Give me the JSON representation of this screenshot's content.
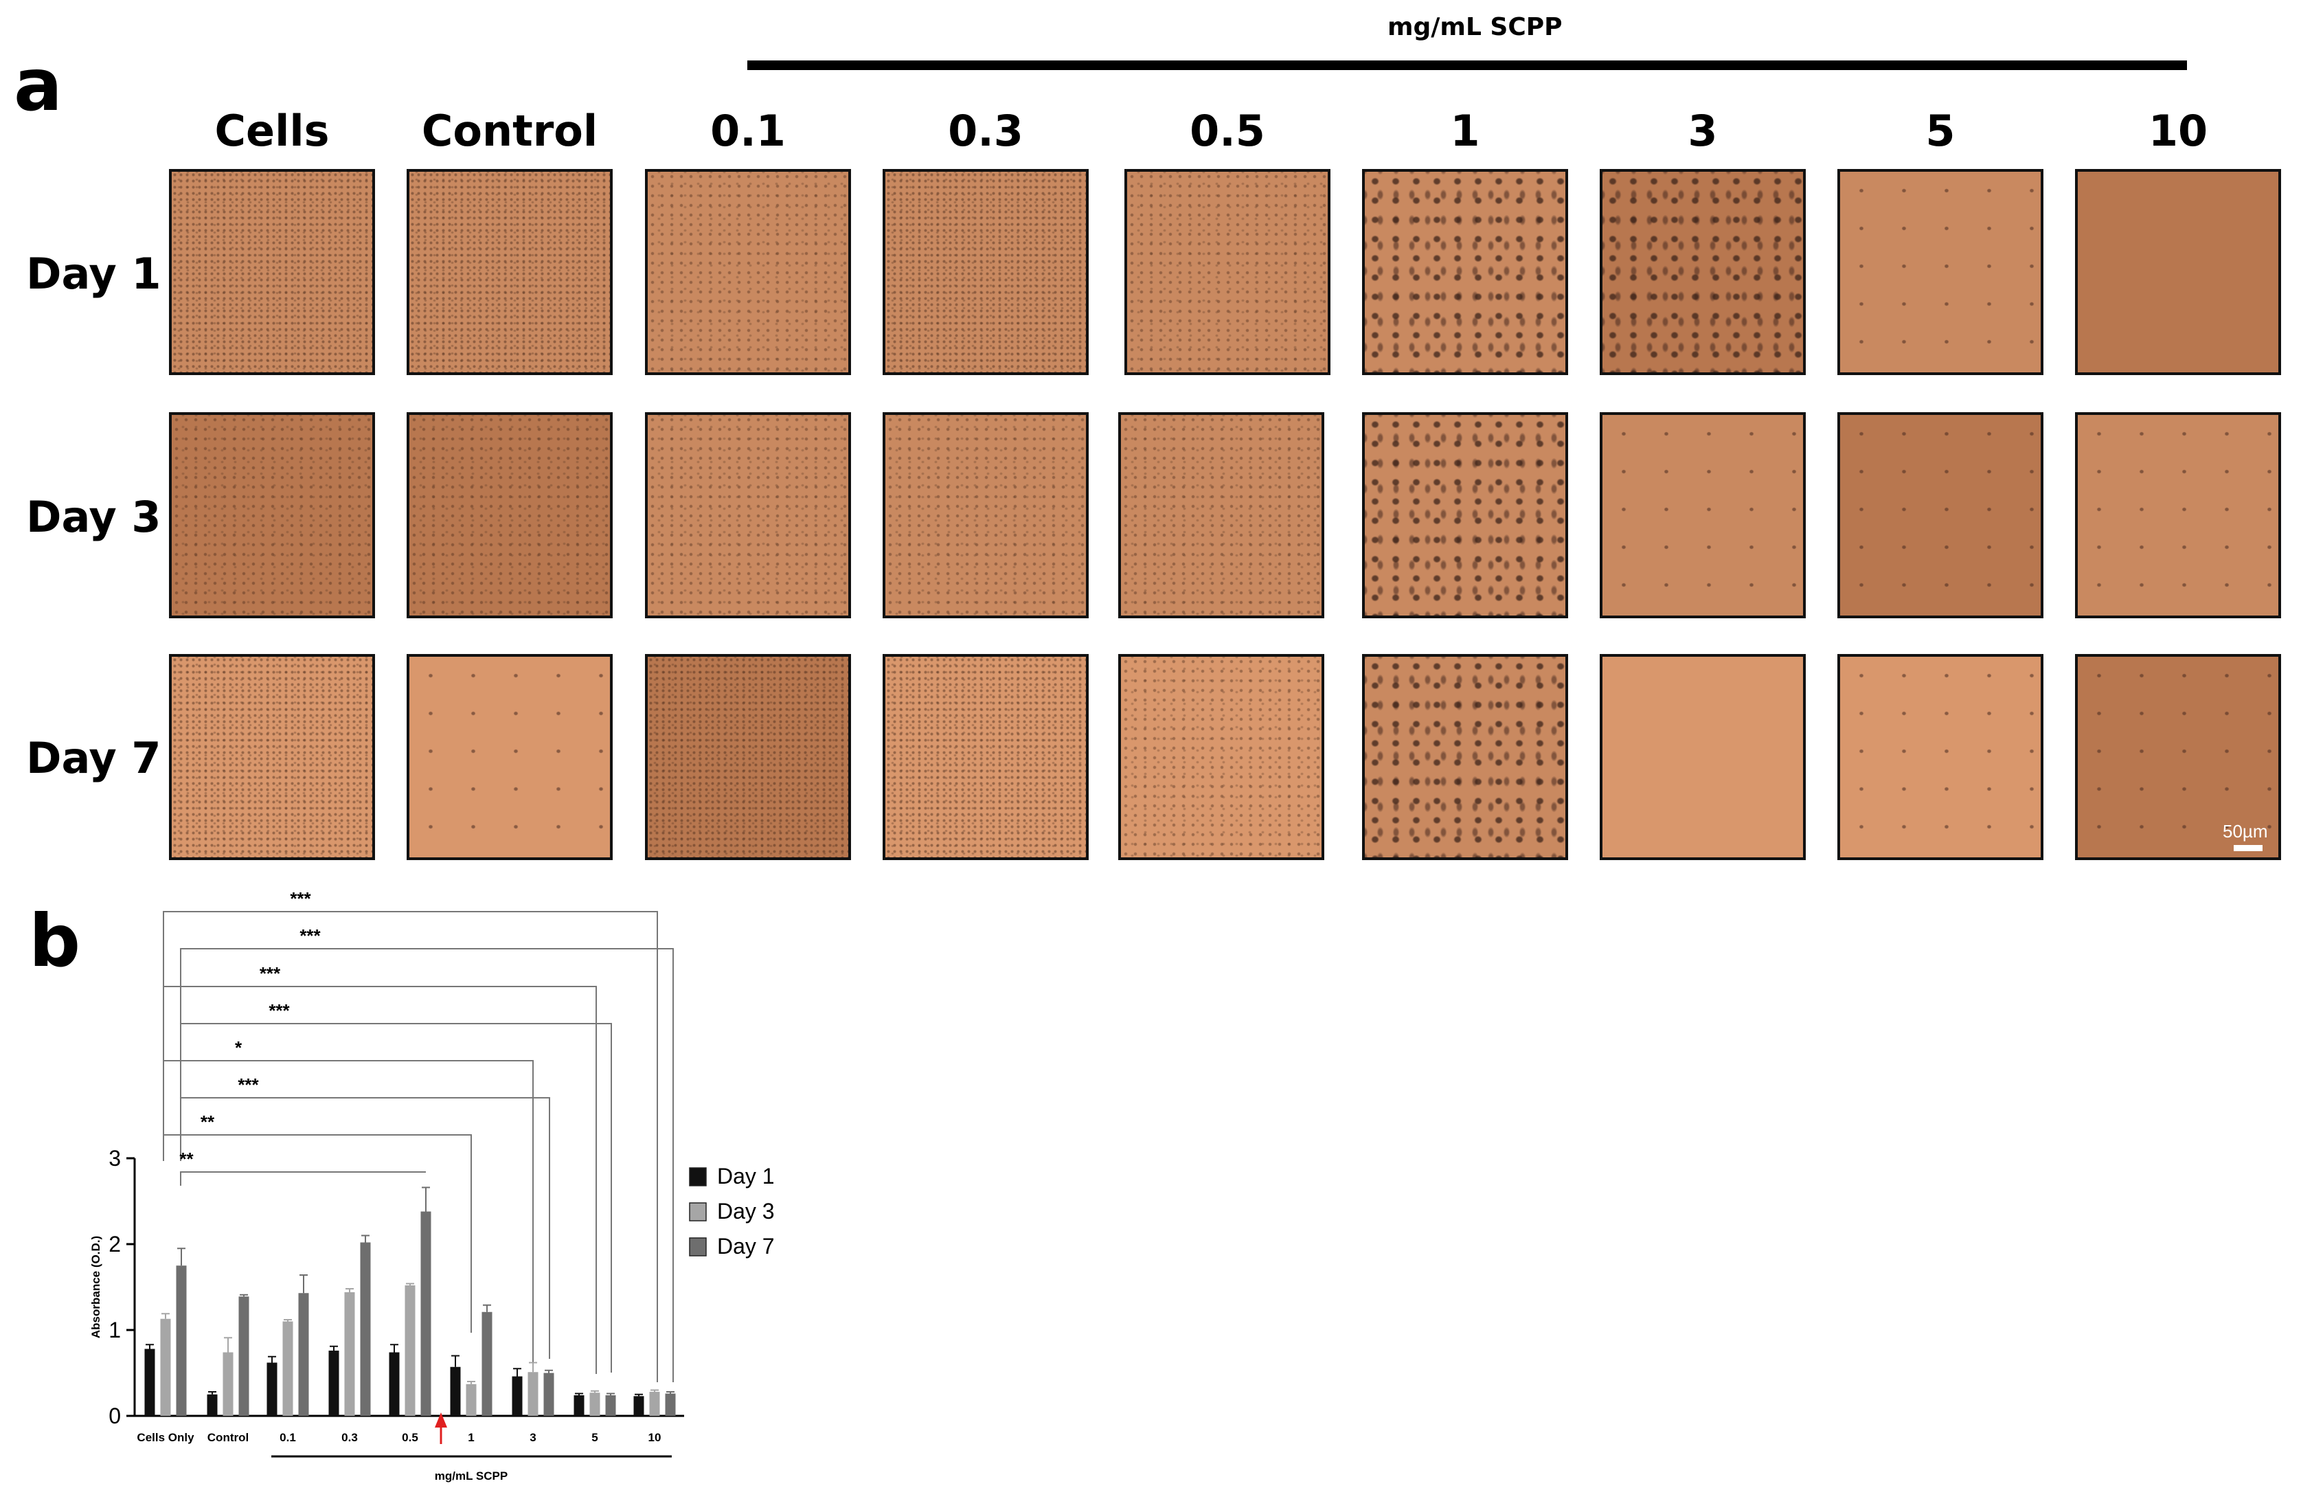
{
  "panel_a": {
    "letter": "a",
    "concentration_label": "mg/mL SCPP",
    "columns": [
      "Cells",
      "Control",
      "0.1",
      "0.3",
      "0.5",
      "1",
      "3",
      "5",
      "10"
    ],
    "rows": [
      "Day 1",
      "Day 3",
      "Day 7"
    ],
    "scale_bar": "50µm"
  },
  "panel_b": {
    "letter": "b",
    "significance": [
      "***",
      "***",
      "***",
      "***",
      "*",
      "***",
      "**",
      "**"
    ],
    "colors": {
      "day1": "#111111",
      "day3": "#a6a6a6",
      "day7": "#6e6e6e",
      "arrow": "#e02020"
    }
  },
  "chart_data": {
    "type": "bar",
    "title": "",
    "xlabel": "mg/mL SCPP",
    "ylabel": "Absorbance (O.D.)",
    "ylim": [
      0,
      3
    ],
    "yticks": [
      "0",
      "1",
      "2",
      "3"
    ],
    "categories": [
      "Cells Only",
      "Control",
      "0.1",
      "0.3",
      "0.5",
      "1",
      "3",
      "5",
      "10"
    ],
    "series": [
      {
        "name": "Day 1",
        "values": [
          0.78,
          0.25,
          0.62,
          0.76,
          0.74,
          0.57,
          0.46,
          0.24,
          0.23
        ],
        "errors": [
          0.05,
          0.03,
          0.07,
          0.05,
          0.09,
          0.13,
          0.09,
          0.02,
          0.02
        ]
      },
      {
        "name": "Day 3",
        "values": [
          1.13,
          0.74,
          1.1,
          1.44,
          1.52,
          0.37,
          0.51,
          0.27,
          0.28
        ],
        "errors": [
          0.06,
          0.17,
          0.02,
          0.04,
          0.02,
          0.03,
          0.11,
          0.02,
          0.02
        ]
      },
      {
        "name": "Day 7",
        "values": [
          1.75,
          1.39,
          1.43,
          2.02,
          2.38,
          1.21,
          0.5,
          0.24,
          0.26
        ],
        "errors": [
          0.2,
          0.02,
          0.21,
          0.08,
          0.28,
          0.08,
          0.03,
          0.02,
          0.02
        ]
      }
    ],
    "legend": [
      "Day 1",
      "Day 3",
      "Day 7"
    ],
    "legend_position": "right",
    "arrow_annotation": "between 0.5 and 1"
  }
}
